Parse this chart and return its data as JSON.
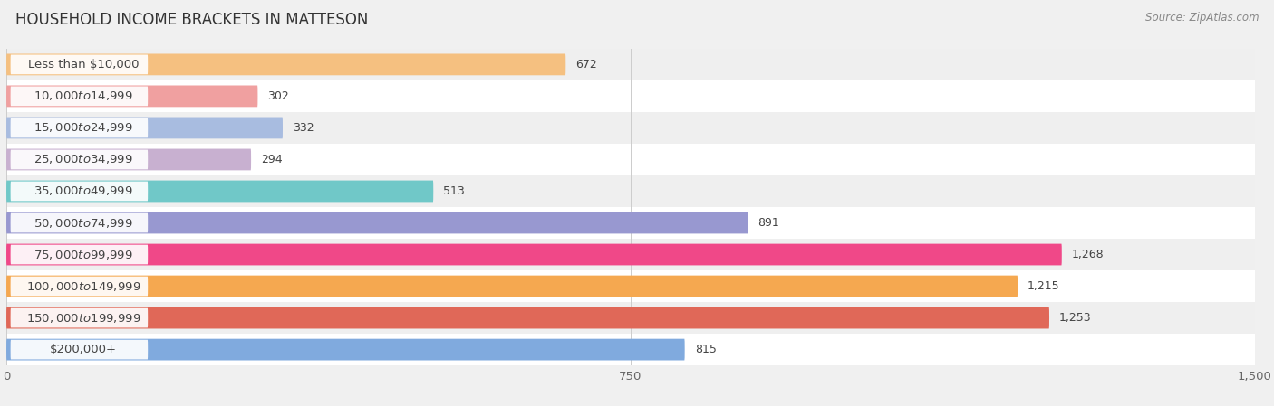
{
  "title": "HOUSEHOLD INCOME BRACKETS IN MATTESON",
  "source": "Source: ZipAtlas.com",
  "categories": [
    "Less than $10,000",
    "$10,000 to $14,999",
    "$15,000 to $24,999",
    "$25,000 to $34,999",
    "$35,000 to $49,999",
    "$50,000 to $74,999",
    "$75,000 to $99,999",
    "$100,000 to $149,999",
    "$150,000 to $199,999",
    "$200,000+"
  ],
  "values": [
    672,
    302,
    332,
    294,
    513,
    891,
    1268,
    1215,
    1253,
    815
  ],
  "bar_colors": [
    "#f5c080",
    "#f0a0a0",
    "#a8bce0",
    "#c8b0d0",
    "#70c8c8",
    "#9898d0",
    "#f04888",
    "#f5a850",
    "#e06858",
    "#80aade"
  ],
  "row_colors": [
    "#efefef",
    "#ffffff"
  ],
  "xlim": [
    0,
    1500
  ],
  "xticks": [
    0,
    750,
    1500
  ],
  "background_color": "#f0f0f0",
  "title_fontsize": 12,
  "label_fontsize": 9.5,
  "value_fontsize": 9,
  "source_fontsize": 8.5
}
